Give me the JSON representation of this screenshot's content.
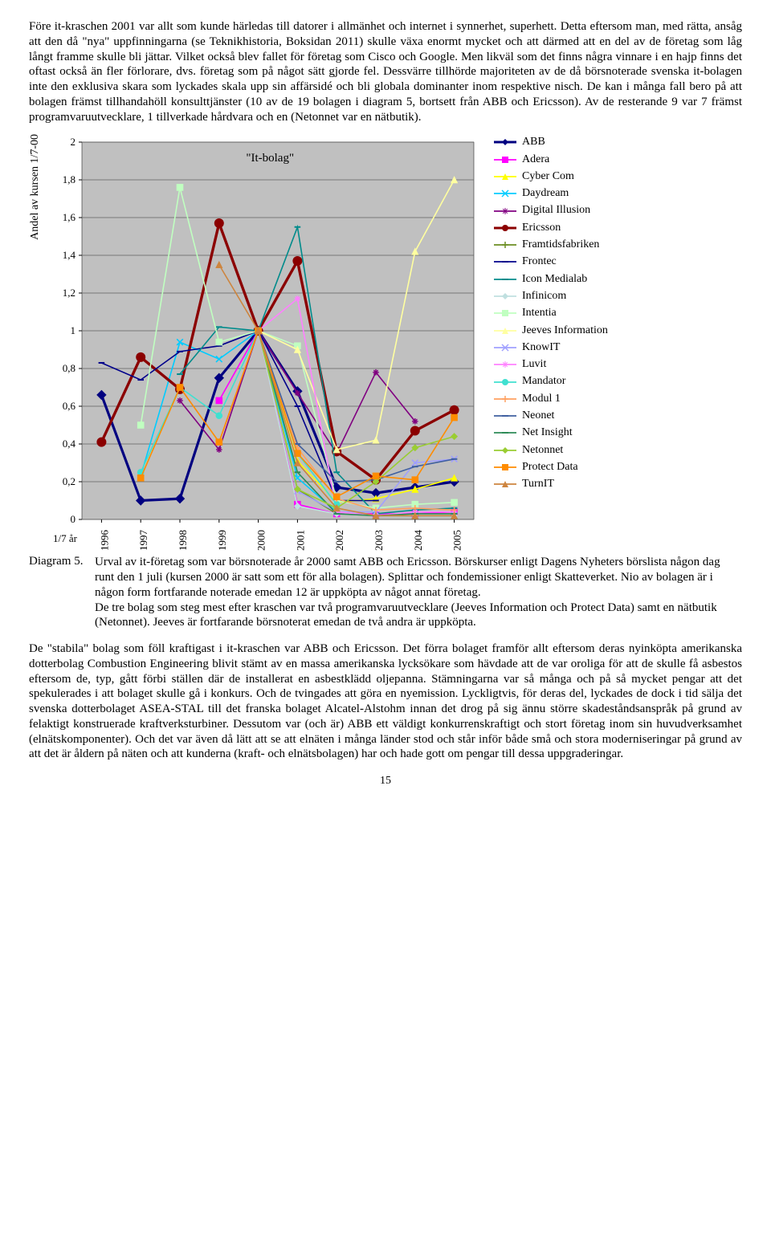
{
  "para1": "Före it-kraschen 2001 var allt som kunde härledas till datorer i allmänhet och internet i synnerhet, superhett. Detta eftersom man, med rätta, ansåg att den då \"nya\" uppfinningarna (se Teknikhistoria, Boksidan 2011) skulle växa enormt mycket och att därmed att en del av de företag som låg långt framme skulle bli jättar. Vilket också blev fallet för företag som Cisco och Google. Men likväl som det finns några vinnare i en hajp finns det oftast också än fler förlorare, dvs. företag som på något sätt gjorde fel. Dessvärre tillhörde majoriteten av de då börsnoterade svenska it-bolagen inte den exklusiva skara som lyckades skala upp sin affärsidé och bli globala dominanter inom respektive nisch. De kan i många fall bero på att bolagen främst tillhandahöll konsulttjänster (10 av de 19 bolagen i diagram 5, bortsett från ABB och Ericsson). Av de resterande 9 var 7 främst programvaruutvecklare, 1 tillverkade hårdvara och en (Netonnet var en nätbutik).",
  "chart": {
    "title": "\"It-bolag\"",
    "ylabel": "Andel av kursen 1/7-00",
    "xlabel": "1/7 år",
    "plot_bg": "#c0c0c0",
    "grid_color": "#606060",
    "ymin": 0,
    "ymax": 2,
    "ystep": 0.2,
    "years": [
      "1996",
      "1997",
      "1998",
      "1999",
      "2000",
      "2001",
      "2002",
      "2003",
      "2004",
      "2005"
    ],
    "series": [
      {
        "name": "ABB",
        "color": "#000080",
        "marker": "diamond",
        "width": 3.2,
        "data": [
          0.66,
          0.1,
          0.11,
          0.75,
          1.0,
          0.68,
          0.17,
          0.14,
          0.17,
          0.2
        ]
      },
      {
        "name": "Adera",
        "color": "#ff00ff",
        "marker": "square",
        "width": 1.6,
        "data": [
          null,
          null,
          null,
          0.63,
          1.0,
          0.08,
          0.03,
          0.03,
          0.03,
          0.04
        ]
      },
      {
        "name": "Cyber Com",
        "color": "#ffff00",
        "marker": "triangle",
        "width": 1.6,
        "data": [
          null,
          null,
          null,
          null,
          1.0,
          0.31,
          0.09,
          0.11,
          0.16,
          0.22
        ]
      },
      {
        "name": "Daydream",
        "color": "#00ccff",
        "marker": "x",
        "width": 1.6,
        "data": [
          null,
          0.23,
          0.94,
          0.85,
          1.0,
          0.22,
          0.04,
          0.02,
          0.02,
          0.02
        ]
      },
      {
        "name": "Digital Illusion",
        "color": "#800080",
        "marker": "star",
        "width": 1.6,
        "data": [
          null,
          null,
          0.63,
          0.37,
          1.0,
          0.67,
          0.35,
          0.78,
          0.52,
          null
        ]
      },
      {
        "name": "Ericsson",
        "color": "#8b0000",
        "marker": "circle",
        "width": 3.4,
        "data": [
          0.41,
          0.86,
          0.69,
          1.57,
          1.0,
          1.37,
          0.36,
          0.21,
          0.47,
          0.58
        ]
      },
      {
        "name": "Framtidsfabriken",
        "color": "#6b8e23",
        "marker": "plus",
        "width": 1.6,
        "data": [
          null,
          null,
          null,
          null,
          1.0,
          0.16,
          0.03,
          0.02,
          0.02,
          0.02
        ]
      },
      {
        "name": "Frontec",
        "color": "#00008b",
        "marker": "dash",
        "width": 1.6,
        "data": [
          0.83,
          0.74,
          0.89,
          0.92,
          1.0,
          0.6,
          0.1,
          0.1,
          null,
          null
        ]
      },
      {
        "name": "Icon Medialab",
        "color": "#008b8b",
        "marker": "dash",
        "width": 1.6,
        "data": [
          null,
          null,
          0.77,
          1.02,
          1.0,
          1.55,
          0.25,
          0.03,
          0.05,
          0.06
        ]
      },
      {
        "name": "Infinicom",
        "color": "#c0e0e0",
        "marker": "diamond",
        "width": 1.6,
        "data": [
          null,
          null,
          null,
          null,
          1.0,
          0.07,
          0.03,
          0.02,
          0.02,
          0.02
        ]
      },
      {
        "name": "Intentia",
        "color": "#c0ffc0",
        "marker": "square",
        "width": 1.6,
        "data": [
          null,
          0.5,
          1.76,
          0.94,
          1.0,
          0.92,
          0.1,
          0.06,
          0.08,
          0.09
        ]
      },
      {
        "name": "Jeeves Information",
        "color": "#ffffa0",
        "marker": "triangle",
        "width": 1.6,
        "data": [
          null,
          null,
          null,
          null,
          1.0,
          0.9,
          0.37,
          0.42,
          1.42,
          1.8
        ]
      },
      {
        "name": "KnowIT",
        "color": "#a0a0ff",
        "marker": "x",
        "width": 1.6,
        "data": [
          null,
          null,
          null,
          null,
          1.0,
          0.15,
          0.04,
          0.04,
          0.3,
          0.32
        ]
      },
      {
        "name": "Luvit",
        "color": "#ff80ff",
        "marker": "star",
        "width": 1.6,
        "data": [
          null,
          null,
          null,
          null,
          1.0,
          1.17,
          0.04,
          0.02,
          0.04,
          0.04
        ]
      },
      {
        "name": "Mandator",
        "color": "#40e0d0",
        "marker": "circle",
        "width": 1.6,
        "data": [
          null,
          0.25,
          0.7,
          0.55,
          1.0,
          0.35,
          0.08,
          null,
          null,
          null
        ]
      },
      {
        "name": "Modul 1",
        "color": "#ffa060",
        "marker": "plus",
        "width": 1.6,
        "data": [
          null,
          null,
          null,
          0.41,
          1.0,
          0.38,
          0.11,
          0.05,
          0.06,
          0.05
        ]
      },
      {
        "name": "Neonet",
        "color": "#4060a0",
        "marker": "dash",
        "width": 1.6,
        "data": [
          null,
          null,
          null,
          null,
          1.0,
          0.4,
          0.2,
          0.21,
          0.28,
          0.32
        ]
      },
      {
        "name": "Net Insight",
        "color": "#2e8b57",
        "marker": "dash",
        "width": 1.6,
        "data": [
          null,
          null,
          null,
          null,
          1.0,
          0.25,
          0.03,
          0.02,
          0.03,
          0.03
        ]
      },
      {
        "name": "Netonnet",
        "color": "#9acd32",
        "marker": "diamond",
        "width": 1.6,
        "data": [
          null,
          null,
          null,
          null,
          1.0,
          0.16,
          0.06,
          0.2,
          0.38,
          0.44
        ]
      },
      {
        "name": "Protect Data",
        "color": "#ff8c00",
        "marker": "square",
        "width": 1.6,
        "data": [
          null,
          0.22,
          0.7,
          0.41,
          1.0,
          0.35,
          0.12,
          0.23,
          0.21,
          0.54
        ]
      },
      {
        "name": "TurnIT",
        "color": "#cd853f",
        "marker": "triangle",
        "width": 1.6,
        "data": [
          null,
          null,
          null,
          1.35,
          1.0,
          0.3,
          0.06,
          0.02,
          0.02,
          0.02
        ]
      }
    ]
  },
  "caption_label": "Diagram 5.",
  "caption_text": "Urval av it-företag som var börsnoterade år 2000 samt ABB och Ericsson. Börskurser enligt Dagens Nyheters börslista någon dag runt den 1 juli (kursen 2000 är satt som ett för alla bolagen). Splittar och fondemissioner enligt Skatteverket. Nio av bolagen är i någon form fortfarande noterade emedan 12 är uppköpta av något annat företag.\nDe tre bolag som steg mest efter kraschen var två programvaruutvecklare (Jeeves Information och Protect Data) samt en nätbutik (Netonnet). Jeeves är fortfarande börsnoterat emedan de två andra är uppköpta.",
  "para2": "De \"stabila\" bolag som föll kraftigast i it-kraschen var ABB och Ericsson. Det förra bolaget framför allt eftersom deras nyinköpta amerikanska dotterbolag Combustion Engineering blivit stämt av en massa amerikanska lycksökare som hävdade att de var oroliga för att de skulle få asbestos eftersom de, typ, gått förbi ställen där de installerat en asbestklädd oljepanna. Stämningarna var så många och på så mycket pengar att det spekulerades i att bolaget skulle gå i konkurs. Och de tvingades att göra en nyemission. Lyckligtvis, för deras del, lyckades de dock i tid sälja det svenska dotterbolaget ASEA-STAL till det franska bolaget Alcatel-Alstohm innan det drog på sig ännu större skadeståndsanspråk på grund av felaktigt konstruerade kraftverksturbiner. Dessutom var (och är) ABB ett väldigt konkurrenskraftigt och stort företag inom sin huvudverksamhet (elnätskomponenter). Och det var även då lätt att se att elnäten i många länder stod och står inför både små och stora moderniseringar på grund av att det är åldern på näten och att kunderna (kraft- och elnätsbolagen) har och hade gott om pengar till dessa uppgraderingar.",
  "pagenum": "15"
}
